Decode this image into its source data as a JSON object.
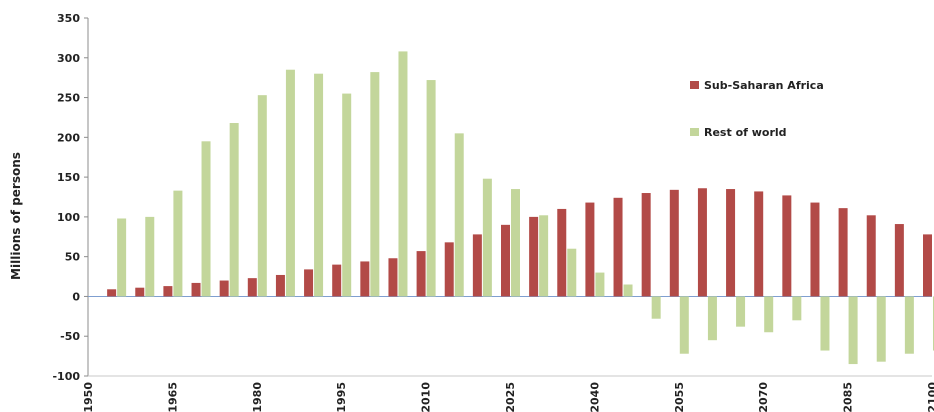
{
  "chart_data": {
    "type": "bar",
    "ylabel": "Millions of persons",
    "ylim": [
      -100,
      350
    ],
    "yticks": [
      -100,
      -50,
      0,
      50,
      100,
      150,
      200,
      250,
      300,
      350
    ],
    "x": [
      1950,
      1955,
      1960,
      1965,
      1970,
      1975,
      1980,
      1985,
      1990,
      1995,
      2000,
      2005,
      2010,
      2015,
      2020,
      2025,
      2030,
      2035,
      2040,
      2045,
      2050,
      2055,
      2060,
      2065,
      2070,
      2075,
      2080,
      2085,
      2090,
      2095,
      2100
    ],
    "xtick_labels": [
      "1950",
      "1965",
      "1980",
      "1995",
      "2010",
      "2025",
      "2040",
      "2055",
      "2070",
      "2085",
      "2100"
    ],
    "series": [
      {
        "name": "Sub-Saharan Africa",
        "color": "#b24a47",
        "values": [
          0,
          9,
          11,
          13,
          17,
          20,
          23,
          27,
          34,
          40,
          44,
          48,
          57,
          68,
          78,
          90,
          100,
          110,
          118,
          124,
          130,
          134,
          136,
          135,
          132,
          127,
          118,
          111,
          102,
          91,
          78
        ]
      },
      {
        "name": "Rest of world",
        "color": "#c3d69b",
        "values": [
          0,
          98,
          100,
          133,
          195,
          218,
          253,
          285,
          280,
          255,
          282,
          308,
          272,
          205,
          148,
          135,
          102,
          60,
          30,
          15,
          -28,
          -72,
          -55,
          -38,
          -45,
          -30,
          -68,
          -85,
          -82,
          -72,
          -68
        ]
      }
    ],
    "legend_position": "upper-right",
    "grid": false
  }
}
